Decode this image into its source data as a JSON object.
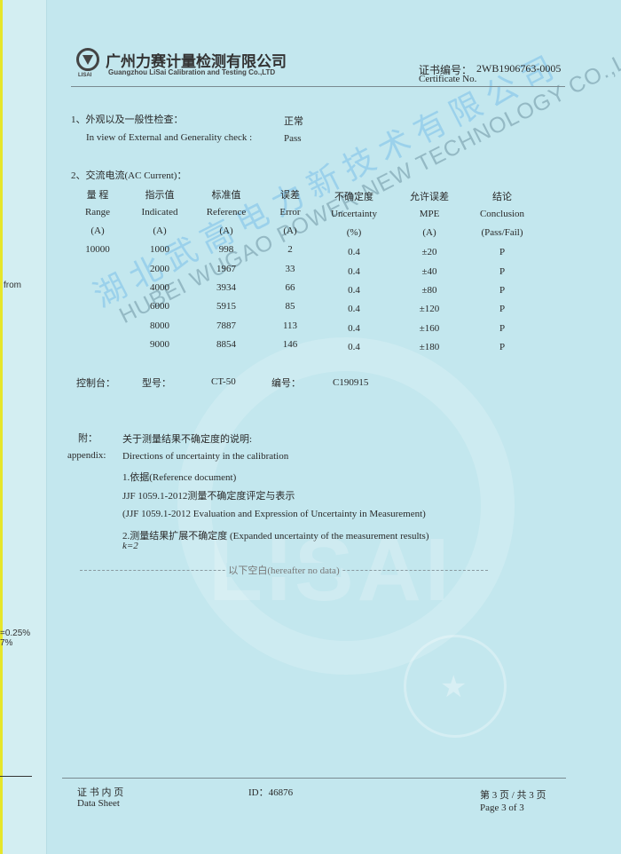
{
  "header": {
    "company_cn": "广州力赛计量检测有限公司",
    "company_en": "Guangzhou LiSai Calibration and Testing Co.,LTD",
    "logo_text": "LISAI",
    "cert_label_cn": "证书编号：",
    "cert_no": "2WB1906763-0005",
    "cert_label_en": "Certificate No."
  },
  "section1": {
    "title_cn": "1、外观以及一般性检查：",
    "title_en": "In view of External and Generality check :",
    "result_cn": "正常",
    "result_en": "Pass"
  },
  "section2": {
    "title": "2、交流电流(AC Current)：",
    "columns": [
      {
        "cn": "量 程",
        "en": "Range",
        "unit": "(A)"
      },
      {
        "cn": "指示值",
        "en": "Indicated",
        "unit": "(A)"
      },
      {
        "cn": "标准值",
        "en": "Reference",
        "unit": "(A)"
      },
      {
        "cn": "误差",
        "en": "Error",
        "unit": "(A)"
      },
      {
        "cn": "不确定度",
        "en": "Uncertainty",
        "unit": "(%)"
      },
      {
        "cn": "允许误差",
        "en": "MPE",
        "unit": "(A)"
      },
      {
        "cn": "结论",
        "en": "Conclusion",
        "unit": "(Pass/Fail)"
      }
    ],
    "rows": [
      [
        "10000",
        "1000",
        "998",
        "2",
        "0.4",
        "±20",
        "P"
      ],
      [
        "",
        "2000",
        "1967",
        "33",
        "0.4",
        "±40",
        "P"
      ],
      [
        "",
        "4000",
        "3934",
        "66",
        "0.4",
        "±80",
        "P"
      ],
      [
        "",
        "6000",
        "5915",
        "85",
        "0.4",
        "±120",
        "P"
      ],
      [
        "",
        "8000",
        "7887",
        "113",
        "0.4",
        "±160",
        "P"
      ],
      [
        "",
        "9000",
        "8854",
        "146",
        "0.4",
        "±180",
        "P"
      ]
    ],
    "console_label": "控制台：",
    "model_label": "型号：",
    "model": "CT-50",
    "serial_label": "编号：",
    "serial": "C190915"
  },
  "appendix": {
    "label_cn": "附：",
    "label_en": "appendix:",
    "title_cn": "关于测量结果不确定度的说明:",
    "title_en": "Directions of uncertainty in the calibration",
    "line1": "1.依据(Reference document)",
    "line2": "JJF 1059.1-2012测量不确定度评定与表示",
    "line3": "(JJF 1059.1-2012 Evaluation and Expression of Uncertainty in Measurement)",
    "line4": "2.测量结果扩展不确定度 (Expanded uncertainty of the measurement results)",
    "line5": "k=2",
    "end_marker": "以下空白(hereafter no data)"
  },
  "footer": {
    "sheet_cn": "证 书 内 页",
    "sheet_en": "Data Sheet",
    "id": "ID：46876",
    "page_cn": "第 3 页 / 共 3 页",
    "page_en": "Page  3  of  3"
  },
  "left_strip": {
    "from": "from",
    "v1": "=0.25%",
    "v2": "7%"
  },
  "watermark": {
    "cn": "湖 北 武 高 电 力 新 技 术 有 限 公 司",
    "en": "HUBEI WUGAO POWER NEW TECHNOLOGY CO.,LTD",
    "bg": "LISAI"
  },
  "colors": {
    "paper": "#c3e7ee",
    "watermark": "#50aae6"
  }
}
